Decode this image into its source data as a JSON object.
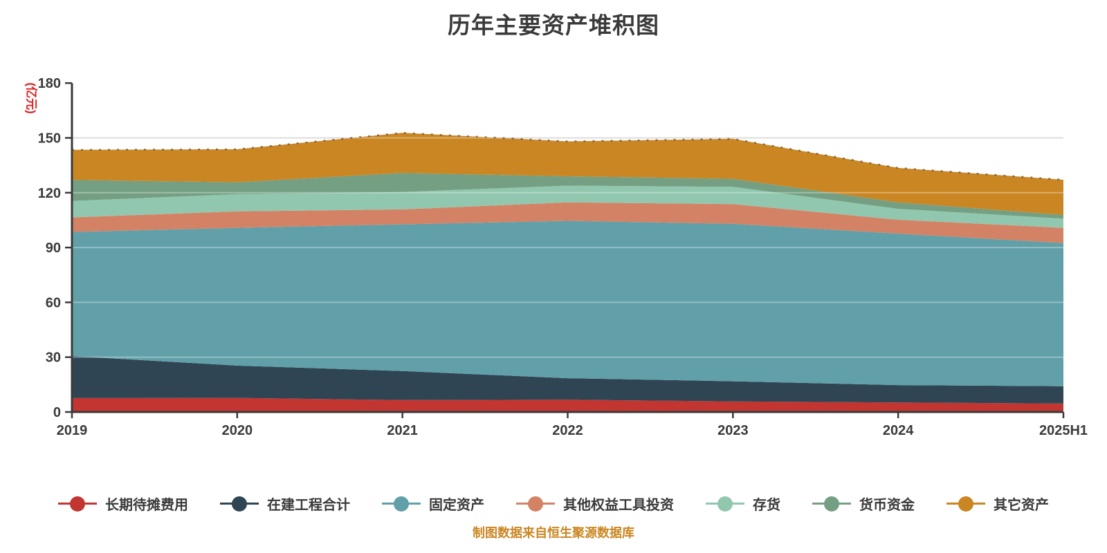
{
  "title": "历年主要资产堆积图",
  "y_axis_name": "(亿元)",
  "y_axis_name_color": "#e02020",
  "footer": "制图数据来自恒生聚源数据库",
  "footer_color": "#ca8622",
  "colors": {
    "title_text": "#3a3a3a",
    "axis_line": "#3a3a3a",
    "tick_label": "#3a3a3a",
    "gridline": "#cfcfcf",
    "background": "#ffffff"
  },
  "chart_data": {
    "type": "area",
    "stacked": true,
    "title": "历年主要资产堆积图",
    "ylabel": "(亿元)",
    "xlabel": "",
    "grid": true,
    "legend_position": "bottom",
    "ylim": [
      0,
      180
    ],
    "y_ticks": [
      0,
      30,
      60,
      90,
      120,
      150,
      180
    ],
    "categories": [
      "2019",
      "2020",
      "2021",
      "2022",
      "2023",
      "2024",
      "2025H1"
    ],
    "series": [
      {
        "name": "长期待摊费用",
        "color": "#c23531",
        "values": [
          7.6,
          7.7,
          6.5,
          6.7,
          5.8,
          5.2,
          4.6
        ]
      },
      {
        "name": "在建工程合计",
        "color": "#2f4554",
        "values": [
          23.0,
          17.7,
          15.9,
          11.8,
          11.0,
          9.5,
          9.5
        ]
      },
      {
        "name": "固定资产",
        "color": "#61a0a8",
        "values": [
          67.9,
          75.4,
          80.3,
          86.1,
          86.2,
          82.9,
          78.4
        ]
      },
      {
        "name": "其他权益工具投资",
        "color": "#d48265",
        "values": [
          8.0,
          9.0,
          8.2,
          10.1,
          10.8,
          7.6,
          8.3
        ]
      },
      {
        "name": "存货",
        "color": "#91c7ae",
        "values": [
          9.0,
          9.4,
          9.5,
          9.2,
          9.4,
          6.0,
          5.0
        ]
      },
      {
        "name": "货币资金",
        "color": "#749f83",
        "values": [
          11.5,
          6.5,
          10.4,
          5.1,
          4.4,
          3.5,
          2.0
        ]
      },
      {
        "name": "其它资产",
        "color": "#ca8622",
        "values": [
          16.5,
          18.1,
          22.0,
          19.1,
          21.9,
          18.9,
          19.3
        ]
      }
    ]
  }
}
